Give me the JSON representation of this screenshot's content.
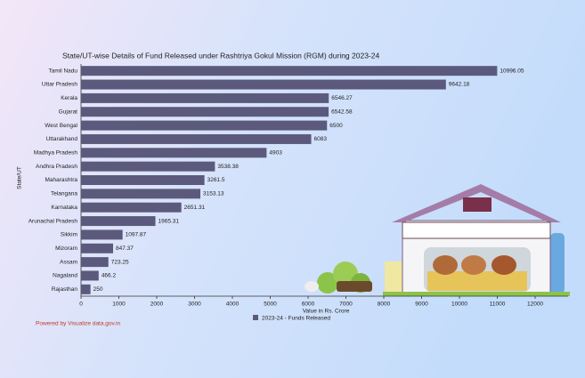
{
  "chart_data": {
    "type": "bar",
    "orientation": "horizontal",
    "title": "State/UT-wise Details of Fund Released under Rashtriya Gokul Mission (RGM) during 2023-24",
    "y_label": "State/UT",
    "x_label": "Value in Rs. Crore",
    "categories": [
      "Tamil Nadu",
      "Uttar Pradesh",
      "Kerala",
      "Gujarat",
      "West Bengal",
      "Uttarakhand",
      "Madhya Pradesh",
      "Andhra Pradesh",
      "Maharashtra",
      "Telangana",
      "Karnataka",
      "Arunachal Pradesh",
      "Sikkim",
      "Mizoram",
      "Assam",
      "Nagaland",
      "Rajasthan"
    ],
    "series": [
      {
        "name": "2023-24 - Funds Released",
        "color": "#5c5a7c",
        "values": [
          10996.05,
          9642.18,
          6546.27,
          6542.58,
          6500,
          6083,
          4903,
          3538.38,
          3261.5,
          3153.13,
          2651.31,
          1965.31,
          1097.87,
          847.37,
          723.25,
          466.2,
          250
        ]
      }
    ],
    "xlim": [
      0,
      12870
    ],
    "xticks": [
      0,
      1000,
      2000,
      3000,
      4000,
      5000,
      6000,
      7000,
      8000,
      9000,
      10000,
      11000,
      12000
    ],
    "credit": "Powered by Visualize data.gov.in"
  }
}
